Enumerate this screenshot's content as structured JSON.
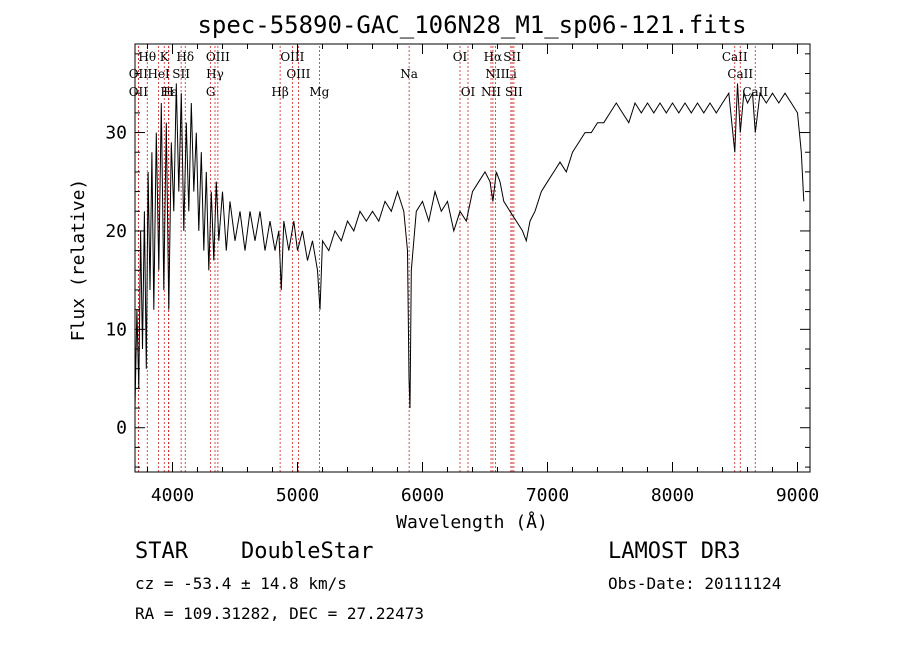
{
  "chart_data": {
    "type": "line",
    "title": "spec-55890-GAC_106N28_M1_sp06-121.fits",
    "xlabel": "Wavelength (Å)",
    "ylabel": "Flux (relative)",
    "xlim": [
      3700,
      9100
    ],
    "ylim": [
      -4.5,
      39
    ],
    "x_ticks": [
      "4000",
      "5000",
      "6000",
      "7000",
      "8000",
      "9000"
    ],
    "y_ticks": [
      "0",
      "10",
      "20",
      "30"
    ],
    "series": [
      {
        "color": "#000000",
        "points": [
          [
            3700,
            2
          ],
          [
            3715,
            12
          ],
          [
            3730,
            4
          ],
          [
            3745,
            20
          ],
          [
            3760,
            8
          ],
          [
            3775,
            22
          ],
          [
            3790,
            6
          ],
          [
            3805,
            26
          ],
          [
            3820,
            14
          ],
          [
            3835,
            28
          ],
          [
            3850,
            12
          ],
          [
            3870,
            30
          ],
          [
            3890,
            16
          ],
          [
            3910,
            33
          ],
          [
            3930,
            14
          ],
          [
            3950,
            31
          ],
          [
            3970,
            12
          ],
          [
            3990,
            29
          ],
          [
            4010,
            22
          ],
          [
            4030,
            35
          ],
          [
            4050,
            24
          ],
          [
            4070,
            34
          ],
          [
            4090,
            20
          ],
          [
            4110,
            31
          ],
          [
            4130,
            22
          ],
          [
            4150,
            33
          ],
          [
            4170,
            24
          ],
          [
            4190,
            30
          ],
          [
            4210,
            20
          ],
          [
            4230,
            28
          ],
          [
            4250,
            18
          ],
          [
            4270,
            26
          ],
          [
            4290,
            16
          ],
          [
            4310,
            24
          ],
          [
            4330,
            17
          ],
          [
            4350,
            25
          ],
          [
            4370,
            19
          ],
          [
            4400,
            24
          ],
          [
            4430,
            18
          ],
          [
            4460,
            23
          ],
          [
            4500,
            19
          ],
          [
            4540,
            22
          ],
          [
            4580,
            18
          ],
          [
            4620,
            22
          ],
          [
            4660,
            19
          ],
          [
            4700,
            22
          ],
          [
            4740,
            18
          ],
          [
            4780,
            21
          ],
          [
            4820,
            18
          ],
          [
            4850,
            20
          ],
          [
            4870,
            14
          ],
          [
            4890,
            21
          ],
          [
            4930,
            18
          ],
          [
            4970,
            21
          ],
          [
            5000,
            18
          ],
          [
            5040,
            20
          ],
          [
            5080,
            17
          ],
          [
            5120,
            19
          ],
          [
            5160,
            16
          ],
          [
            5180,
            12
          ],
          [
            5200,
            19
          ],
          [
            5250,
            18
          ],
          [
            5300,
            20
          ],
          [
            5350,
            19
          ],
          [
            5400,
            21
          ],
          [
            5450,
            20
          ],
          [
            5500,
            22
          ],
          [
            5550,
            21
          ],
          [
            5600,
            22
          ],
          [
            5650,
            21
          ],
          [
            5700,
            23
          ],
          [
            5750,
            22
          ],
          [
            5800,
            24
          ],
          [
            5850,
            22
          ],
          [
            5880,
            18
          ],
          [
            5892,
            5
          ],
          [
            5900,
            2
          ],
          [
            5910,
            16
          ],
          [
            5950,
            22
          ],
          [
            6000,
            23
          ],
          [
            6050,
            21
          ],
          [
            6100,
            24
          ],
          [
            6150,
            22
          ],
          [
            6200,
            23
          ],
          [
            6250,
            20
          ],
          [
            6300,
            22
          ],
          [
            6350,
            21
          ],
          [
            6400,
            24
          ],
          [
            6450,
            25
          ],
          [
            6500,
            26
          ],
          [
            6540,
            25
          ],
          [
            6563,
            23
          ],
          [
            6590,
            26
          ],
          [
            6620,
            25
          ],
          [
            6650,
            23
          ],
          [
            6700,
            22
          ],
          [
            6750,
            21
          ],
          [
            6800,
            20
          ],
          [
            6830,
            19
          ],
          [
            6860,
            21
          ],
          [
            6900,
            22
          ],
          [
            6950,
            24
          ],
          [
            7000,
            25
          ],
          [
            7050,
            26
          ],
          [
            7100,
            27
          ],
          [
            7150,
            26
          ],
          [
            7200,
            28
          ],
          [
            7250,
            29
          ],
          [
            7300,
            30
          ],
          [
            7350,
            30
          ],
          [
            7400,
            31
          ],
          [
            7450,
            31
          ],
          [
            7500,
            32
          ],
          [
            7550,
            33
          ],
          [
            7600,
            32
          ],
          [
            7650,
            31
          ],
          [
            7700,
            33
          ],
          [
            7750,
            32
          ],
          [
            7800,
            33
          ],
          [
            7850,
            32
          ],
          [
            7900,
            33
          ],
          [
            7950,
            32
          ],
          [
            8000,
            33
          ],
          [
            8050,
            32
          ],
          [
            8100,
            33
          ],
          [
            8150,
            32
          ],
          [
            8200,
            33
          ],
          [
            8250,
            32
          ],
          [
            8300,
            33
          ],
          [
            8350,
            32
          ],
          [
            8400,
            33
          ],
          [
            8450,
            34
          ],
          [
            8498,
            28
          ],
          [
            8520,
            35
          ],
          [
            8542,
            30
          ],
          [
            8570,
            34
          ],
          [
            8600,
            33
          ],
          [
            8640,
            34
          ],
          [
            8662,
            30
          ],
          [
            8700,
            34
          ],
          [
            8750,
            33
          ],
          [
            8800,
            34
          ],
          [
            8850,
            33
          ],
          [
            8900,
            34
          ],
          [
            8950,
            33
          ],
          [
            9000,
            32
          ],
          [
            9030,
            28
          ],
          [
            9050,
            23
          ]
        ]
      }
    ],
    "lines": [
      {
        "label": "Hθ",
        "x": 3798,
        "row": 1
      },
      {
        "label": "K",
        "x": 3934,
        "row": 1
      },
      {
        "label": "Hδ",
        "x": 4102,
        "row": 1
      },
      {
        "label": "OIII",
        "x": 4363,
        "row": 1
      },
      {
        "label": "OIII",
        "x": 4959,
        "row": 1
      },
      {
        "label": "OI",
        "x": 6300,
        "row": 1
      },
      {
        "label": "Hα",
        "x": 6563,
        "row": 1
      },
      {
        "label": "SII",
        "x": 6717,
        "row": 1
      },
      {
        "label": "CaII",
        "x": 8498,
        "row": 1
      },
      {
        "label": "OII",
        "x": 3727,
        "row": 2
      },
      {
        "label": "HeI",
        "x": 3889,
        "row": 2
      },
      {
        "label": "SII",
        "x": 4069,
        "row": 2
      },
      {
        "label": "Hγ",
        "x": 4340,
        "row": 2
      },
      {
        "label": "OIII",
        "x": 5007,
        "row": 2
      },
      {
        "label": "Na",
        "x": 5893,
        "row": 2
      },
      {
        "label": "NII",
        "x": 6583,
        "row": 2
      },
      {
        "label": "Li",
        "x": 6707,
        "row": 2
      },
      {
        "label": "CaII",
        "x": 8542,
        "row": 2
      },
      {
        "label": "OII",
        "x": 3727,
        "row": 3
      },
      {
        "label": "Hε",
        "x": 3970,
        "row": 3
      },
      {
        "label": "H",
        "x": 3968,
        "row": 3
      },
      {
        "label": "G",
        "x": 4305,
        "row": 3
      },
      {
        "label": "Hβ",
        "x": 4861,
        "row": 3
      },
      {
        "label": "Mg",
        "x": 5175,
        "row": 3
      },
      {
        "label": "OI",
        "x": 6364,
        "row": 3
      },
      {
        "label": "NII",
        "x": 6548,
        "row": 3
      },
      {
        "label": "SII",
        "x": 6731,
        "row": 3
      },
      {
        "label": "CaII",
        "x": 8662,
        "row": 3
      }
    ]
  },
  "footer": {
    "class_label": "STAR",
    "subclass_label": "DoubleStar",
    "survey": "LAMOST DR3",
    "cz": "cz = -53.4 ± 14.8 km/s",
    "obs_date": "Obs-Date: 20111124",
    "radec": "RA = 109.31282, DEC =  27.22473"
  }
}
